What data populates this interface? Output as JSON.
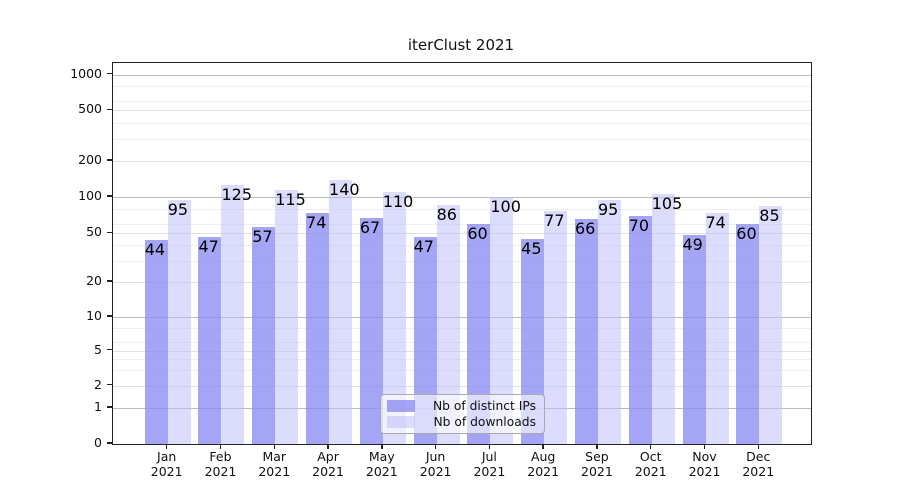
{
  "title": "iterClust 2021",
  "chart_data": {
    "type": "bar",
    "categories": [
      "Jan",
      "Feb",
      "Mar",
      "Apr",
      "May",
      "Jun",
      "Jul",
      "Aug",
      "Sep",
      "Oct",
      "Nov",
      "Dec"
    ],
    "year_label": "2021",
    "series": [
      {
        "name": "Nb of distinct IPs",
        "color": "rgba(140,140,242,0.78)",
        "solid_color": "#a5a5f2",
        "values": [
          44,
          47,
          57,
          74,
          67,
          47,
          60,
          45,
          66,
          70,
          49,
          60
        ]
      },
      {
        "name": "Nb of downloads",
        "color": "rgba(185,185,250,0.5)",
        "solid_color": "#dcdcf9",
        "values": [
          95,
          125,
          115,
          140,
          110,
          86,
          100,
          77,
          95,
          105,
          74,
          85
        ]
      }
    ],
    "yticks": [
      0,
      1,
      2,
      5,
      10,
      20,
      50,
      100,
      200,
      500,
      1000
    ],
    "ylim": [
      0,
      1250
    ],
    "xlabel": "",
    "ylabel": "",
    "scale": "symlog",
    "grid": "on",
    "legend_position": "lower-center",
    "colors": {
      "grid_major": "#bcbcbc",
      "grid_minor": "#e2e2e2",
      "axis": "#222222",
      "text": "#111111"
    }
  }
}
